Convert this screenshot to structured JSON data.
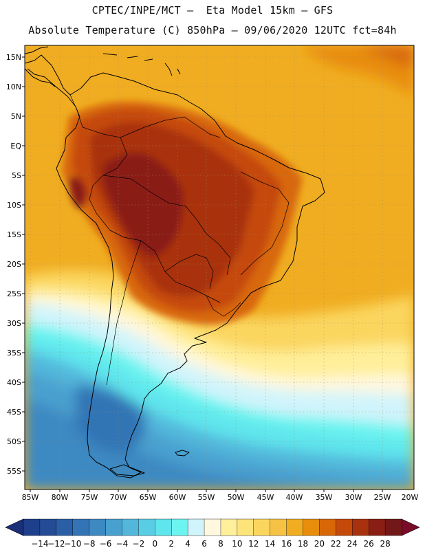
{
  "title_line1": "CPTEC/INPE/MCT –  Eta Model 15km – GFS",
  "title_line2": "Absolute Temperature (C) 850hPa – 09/06/2020 12UTC fct=84h",
  "lat_labels": [
    "15N",
    "10N",
    "5N",
    "EQ",
    "5S",
    "10S",
    "15S",
    "20S",
    "25S",
    "30S",
    "35S",
    "40S",
    "45S",
    "50S",
    "55S"
  ],
  "lon_labels": [
    "85W",
    "80W",
    "75W",
    "70W",
    "65W",
    "60W",
    "55W",
    "50W",
    "45W",
    "40W",
    "35W",
    "30W",
    "25W",
    "20W"
  ],
  "colorbar": {
    "labels": [
      "-14",
      "-12",
      "-10",
      "-8",
      "-6",
      "-4",
      "-2",
      "0",
      "2",
      "4",
      "6",
      "8",
      "10",
      "12",
      "14",
      "16",
      "18",
      "20",
      "22",
      "24",
      "26",
      "28"
    ],
    "colors": [
      "#1e3f8c",
      "#244b96",
      "#2a5fa6",
      "#3274b5",
      "#3d89c2",
      "#48a0cf",
      "#52b7db",
      "#58cde4",
      "#5fe5ec",
      "#6cf4f0",
      "#d0f4fb",
      "#fff8df",
      "#ffef9a",
      "#fde47a",
      "#fbd65e",
      "#f6c244",
      "#f0ad21",
      "#e88c0b",
      "#d86708",
      "#c54908",
      "#a9320e",
      "#8a1e14",
      "#721818"
    ],
    "low_arrow_color": "#1b2e78",
    "high_arrow_color": "#7a0c28"
  }
}
